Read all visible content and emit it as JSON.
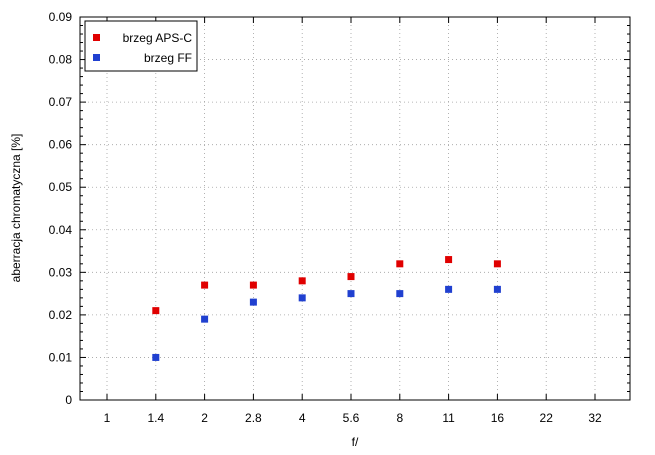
{
  "chart_data": {
    "type": "scatter",
    "categories": [
      "1",
      "1.4",
      "2",
      "2.8",
      "4",
      "5.6",
      "8",
      "11",
      "16",
      "22",
      "32"
    ],
    "xlabel": "f/",
    "ylabel": "aberracja chromatyczna [%]",
    "ylim": [
      0,
      0.09
    ],
    "yticks": [
      "0",
      "0.01",
      "0.02",
      "0.03",
      "0.04",
      "0.05",
      "0.06",
      "0.07",
      "0.08",
      "0.09"
    ],
    "grid": true,
    "legend_position": "top-left",
    "series": [
      {
        "name": "brzeg APS-C",
        "color": "#e00000",
        "points": [
          {
            "x": "1.4",
            "y": 0.021
          },
          {
            "x": "2",
            "y": 0.027
          },
          {
            "x": "2.8",
            "y": 0.027
          },
          {
            "x": "4",
            "y": 0.028
          },
          {
            "x": "5.6",
            "y": 0.029
          },
          {
            "x": "8",
            "y": 0.032
          },
          {
            "x": "11",
            "y": 0.033
          },
          {
            "x": "16",
            "y": 0.032
          }
        ]
      },
      {
        "name": "brzeg FF",
        "color": "#2040d0",
        "points": [
          {
            "x": "1.4",
            "y": 0.01
          },
          {
            "x": "2",
            "y": 0.019
          },
          {
            "x": "2.8",
            "y": 0.023
          },
          {
            "x": "4",
            "y": 0.024
          },
          {
            "x": "5.6",
            "y": 0.025
          },
          {
            "x": "8",
            "y": 0.025
          },
          {
            "x": "11",
            "y": 0.026
          },
          {
            "x": "16",
            "y": 0.026
          }
        ]
      }
    ]
  }
}
